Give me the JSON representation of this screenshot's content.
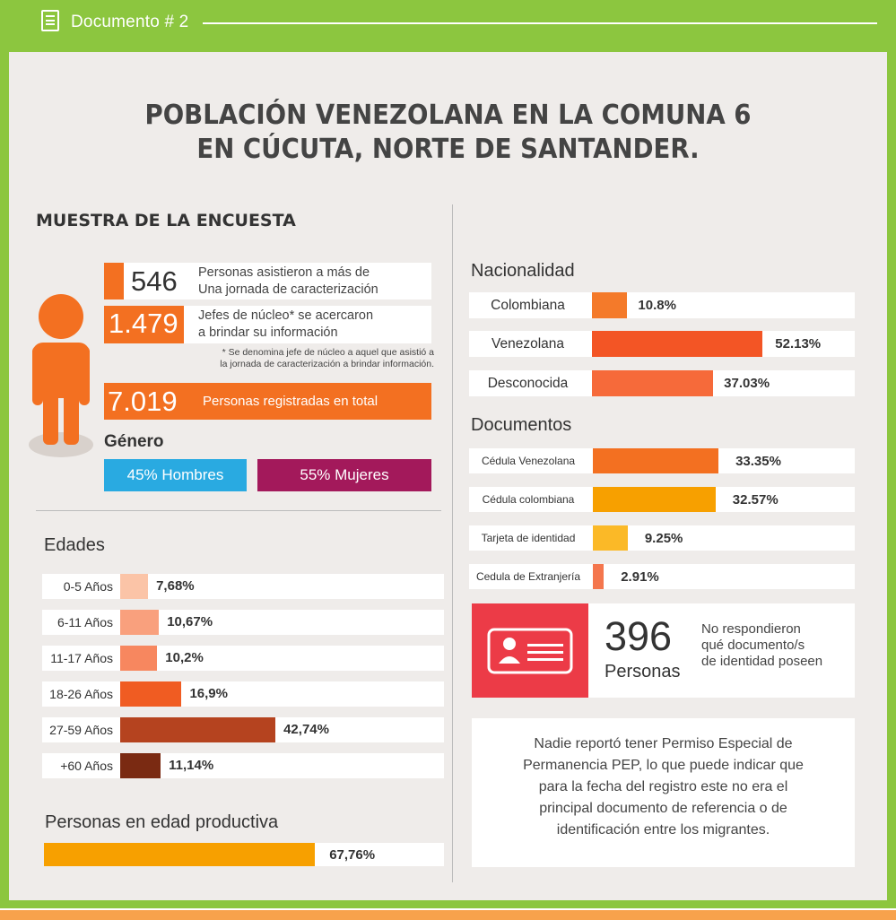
{
  "header": {
    "doc_label": "Documento # 2"
  },
  "title": {
    "line1": "POBLACIÓN VENEZOLANA EN LA COMUNA 6",
    "line2": "EN CÚCUTA, NORTE DE SANTANDER."
  },
  "muestra": {
    "heading": "MUESTRA DE LA ENCUESTA",
    "stat1": {
      "number": "546",
      "text1": "Personas asistieron a más de",
      "text2": "Una jornada de caracterización"
    },
    "stat2": {
      "number": "1.479",
      "text1": "Jefes de núcleo* se acercaron",
      "text2": "a brindar su información"
    },
    "footnote1": "* Se denomina jefe de núcleo a aquel que asistió a",
    "footnote2": "la jornada de caracterización a brindar información.",
    "stat3": {
      "number": "7.019",
      "text": "Personas registradas en total"
    }
  },
  "genero": {
    "heading": "Género",
    "hombres": "45% Hombres",
    "mujeres": "55% Mujeres"
  },
  "productiva": {
    "heading": "Personas en edad productiva",
    "value": 67.76,
    "label": "67,76%"
  },
  "nota": {
    "lines": [
      "Nadie reportó tener Permiso Especial de",
      "Permanencia PEP, lo que puede indicar que",
      "para la fecha del registro este no era el",
      "principal documento de referencia o de",
      "identificación entre los migrantes."
    ]
  },
  "no_resp": {
    "number": "396",
    "unit": "Personas",
    "text": [
      "No respondieron",
      "qué documento/s",
      "de identidad poseen"
    ]
  },
  "colors": {
    "orange": "#f37021",
    "hombres": "#29aae1",
    "mujeres": "#a3195b",
    "green": "#8cc63f",
    "card_red": "#ec3b47"
  },
  "chart_data": [
    {
      "type": "bar",
      "title": "Edades",
      "categories": [
        "0-5 Años",
        "6-11 Años",
        "11-17 Años",
        "18-26 Años",
        "27-59 Años",
        "+60 Años"
      ],
      "values": [
        7.68,
        10.67,
        10.2,
        16.9,
        42.74,
        11.14
      ],
      "labels": [
        "7,68%",
        "10,67%",
        "10,2%",
        "16,9%",
        "42,74%",
        "11,14%"
      ],
      "colors": [
        "#fbc4a7",
        "#f9a07d",
        "#f7875f",
        "#f05c22",
        "#b5431f",
        "#7a2a12"
      ]
    },
    {
      "type": "bar",
      "title": "Nacionalidad",
      "categories": [
        "Colombiana",
        "Venezolana",
        "Desconocida"
      ],
      "values": [
        10.8,
        52.13,
        37.03
      ],
      "labels": [
        "10.8%",
        "52.13%",
        "37.03%"
      ],
      "colors": [
        "#f47a2a",
        "#f35525",
        "#f66a3a"
      ]
    },
    {
      "type": "bar",
      "title": "Documentos",
      "categories": [
        "Cédula Venezolana",
        "Cédula colombiana",
        "Tarjeta de identidad",
        "Cedula de Extranjería"
      ],
      "values": [
        33.35,
        32.57,
        9.25,
        2.91
      ],
      "labels": [
        "33.35%",
        "32.57%",
        "9.25%",
        "2.91%"
      ],
      "colors": [
        "#f37021",
        "#f7a000",
        "#fbb927",
        "#f4764d"
      ]
    }
  ]
}
